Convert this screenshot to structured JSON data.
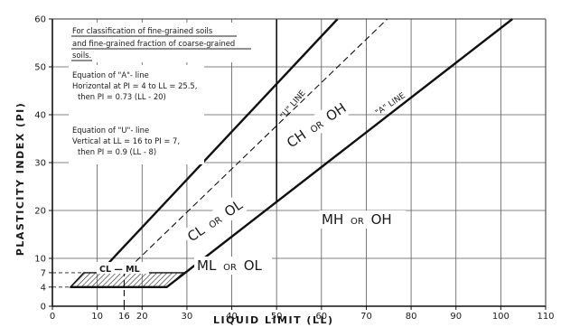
{
  "chart_data": {
    "type": "line",
    "title": "",
    "xlabel": "LIQUID LIMIT (LL)",
    "ylabel": "PLASTICITY INDEX (PI)",
    "xlim": [
      0,
      110
    ],
    "ylim": [
      0,
      60
    ],
    "x_ticks": [
      0,
      10,
      16,
      20,
      30,
      40,
      50,
      60,
      70,
      80,
      90,
      100,
      110
    ],
    "x_tick_labels": [
      "0",
      "10",
      "16",
      "20",
      "30",
      "40",
      "50",
      "60",
      "70",
      "80",
      "90",
      "100",
      "110"
    ],
    "y_ticks": [
      0,
      4,
      7,
      10,
      20,
      30,
      40,
      50,
      60
    ],
    "y_tick_labels": [
      "0",
      "4",
      "7",
      "10",
      "20",
      "30",
      "40",
      "50",
      "60"
    ],
    "grid": true,
    "series": [
      {
        "name": "\"A\" LINE",
        "style": "solid",
        "x": [
          4,
          25.5,
          102.6
        ],
        "y": [
          4,
          4,
          60
        ]
      },
      {
        "name": "\"U\" LINE",
        "style": "dashed",
        "x": [
          16,
          16,
          74.7
        ],
        "y": [
          0,
          7,
          60
        ]
      }
    ],
    "reference_lines": [
      {
        "type": "vertical",
        "x": 50,
        "y_range": [
          21.9,
          60
        ]
      },
      {
        "type": "horizontal-dashed",
        "y": 7,
        "x_range": [
          0,
          7
        ]
      },
      {
        "type": "horizontal-dashed",
        "y": 4,
        "x_range": [
          0,
          4
        ]
      }
    ],
    "boundary_line": {
      "x": [
        10.5,
        63.6
      ],
      "y": [
        7,
        60
      ]
    },
    "hatched_zone": {
      "label": "CL — ML",
      "x": [
        4,
        7,
        29.5,
        25.5
      ],
      "y": [
        4,
        7,
        7,
        4
      ]
    },
    "annotation_box": {
      "lines": [
        "For classification of fine-grained soils",
        "and fine-grained fraction of coarse-grained",
        "soils."
      ]
    },
    "equations": {
      "a_line": [
        "Equation of \"A\"- line",
        "Horizontal at PI = 4 to LL = 25.5,",
        "then PI = 0.73 (LL - 20)"
      ],
      "u_line": [
        "Equation of \"U\"- line",
        "Vertical at LL = 16 to PI = 7,",
        "then PI = 0.9 (LL - 8)"
      ]
    },
    "zones": [
      {
        "label": "CH",
        "conj": "OR",
        "label2": "OH"
      },
      {
        "label": "CL",
        "conj": "OR",
        "label2": "OL"
      },
      {
        "label": "MH",
        "conj": "OR",
        "label2": "OH"
      },
      {
        "label": "ML",
        "conj": "OR",
        "label2": "OL"
      }
    ],
    "line_labels": {
      "u_line": "\"U\" LINE",
      "a_line": "\"A\" LINE"
    }
  }
}
